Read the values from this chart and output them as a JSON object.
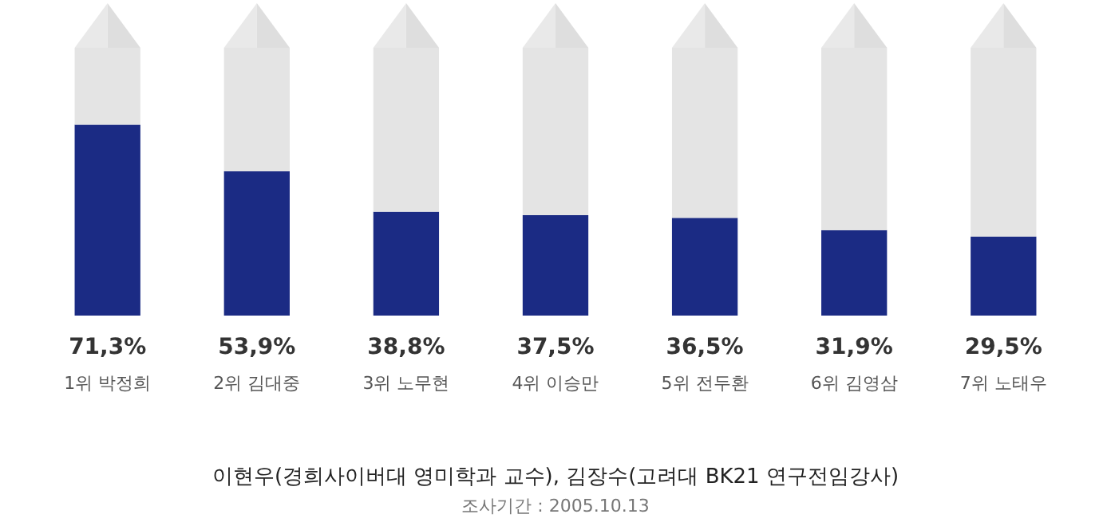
{
  "chart_data": {
    "type": "bar",
    "stacked": true,
    "categories": [
      "1위 박정희",
      "2위 김대중",
      "3위 노무현",
      "4위 이승만",
      "5위 전두환",
      "6위 김영삼",
      "7위 노태우"
    ],
    "series": [
      {
        "color": "#1b2b84",
        "values": [
          71.3,
          53.9,
          38.8,
          37.5,
          36.5,
          31.9,
          29.5
        ],
        "value_labels": [
          "71,3%",
          "53,9%",
          "38,8%",
          "37,5%",
          "36,5%",
          "31,9%",
          "29,5%"
        ]
      },
      {
        "color": "#e4e4e4",
        "values": [
          28.7,
          46.1,
          61.2,
          62.5,
          63.5,
          68.1,
          70.5
        ]
      }
    ],
    "ylim": [
      0,
      100
    ],
    "annotations": [
      "이현우(경희사이버대 영미학과 교수), 김장수(고려대 BK21 연구전임강사)",
      "조사기간 : 2005.10.13"
    ]
  }
}
